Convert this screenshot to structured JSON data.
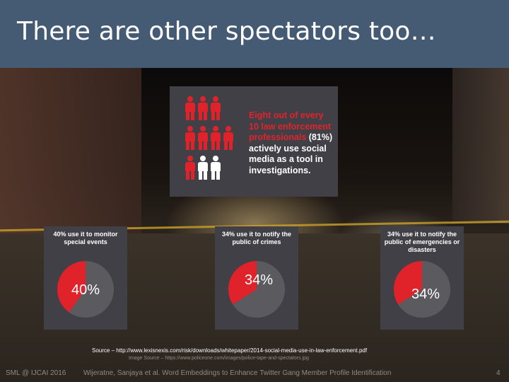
{
  "slide": {
    "title": "There are other spectators too…",
    "page_number": "4"
  },
  "infographic": {
    "text_red_1": "Eight out of every 10 law enforcement professionals",
    "text_white_pct": "(81%)",
    "text_red_2": "actively use social media as a tool in investigations.",
    "icons": {
      "red_count": 8,
      "white_count": 2,
      "red_color": "#e0232b",
      "white_color": "#ffffff"
    }
  },
  "chart_data": [
    {
      "type": "pie",
      "title": "40% use it to monitor special events",
      "slices": [
        {
          "label": "40%",
          "value": 40,
          "color": "#e0232b"
        },
        {
          "label": "",
          "value": 60,
          "color": "#5b5a5f"
        }
      ]
    },
    {
      "type": "pie",
      "title": "34% use it to notify the public of crimes",
      "slices": [
        {
          "label": "34%",
          "value": 34,
          "color": "#e0232b"
        },
        {
          "label": "",
          "value": 66,
          "color": "#5b5a5f"
        }
      ]
    },
    {
      "type": "pie",
      "title": "34% use it to notify the public of emergencies or disasters",
      "slices": [
        {
          "label": "34%",
          "value": 34,
          "color": "#e0232b"
        },
        {
          "label": "",
          "value": 66,
          "color": "#5b5a5f"
        }
      ]
    }
  ],
  "cards": [
    {
      "caption": "40% use it to monitor special events",
      "label": "40%"
    },
    {
      "caption": "34% use it to notify the public of crimes",
      "label": "34%"
    },
    {
      "caption": "34% use it to notify the public of emergencies or disasters",
      "label": "34%"
    }
  ],
  "sources": {
    "source": "Source – http://www.lexisnexis.com/risk/downloads/whitepaper/2014-social-media-use-in-law-enforcement.pdf",
    "image_source": "Image Source – https://www.policeone.com/images/police-tape-and-spectators.jpg"
  },
  "footer": {
    "left": "SML @ IJCAI 2016",
    "center": "Wijeratne, Sanjaya et al. Word Embeddings to Enhance Twitter Gang Member Profile Identification"
  }
}
